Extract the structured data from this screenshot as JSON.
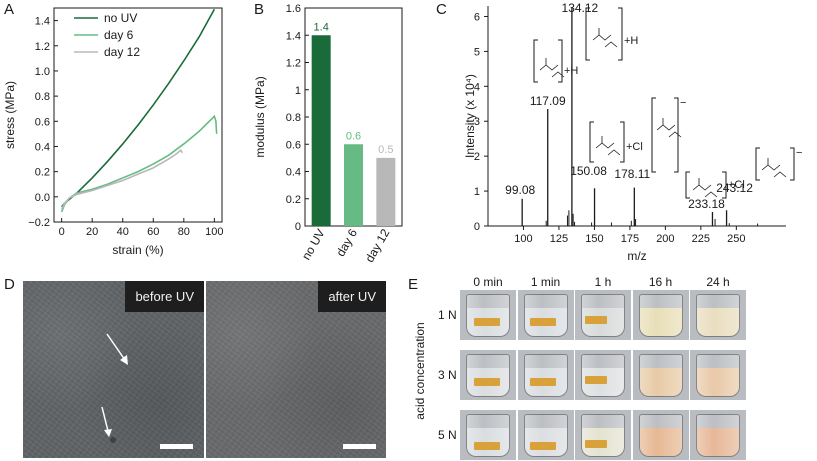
{
  "panel_labels": {
    "a": "A",
    "b": "B",
    "c": "C",
    "d": "D",
    "e": "E"
  },
  "colors": {
    "noUV": "#1a6b3a",
    "day6": "#66bb84",
    "day12": "#b8b8b8",
    "axis": "#1a1a1a"
  },
  "chart_data": [
    {
      "panel": "A",
      "type": "line",
      "xlabel": "strain (%)",
      "ylabel": "stress (MPa)",
      "xlim": [
        -5,
        105
      ],
      "ylim": [
        -0.2,
        1.5
      ],
      "xticks": [
        "0",
        "20",
        "40",
        "60",
        "80",
        "100"
      ],
      "yticks": [
        "−0.2",
        "0.0",
        "0.2",
        "0.4",
        "0.6",
        "0.8",
        "1.0",
        "1.2",
        "1.4"
      ],
      "legend": [
        "no UV",
        "day 6",
        "day 12"
      ],
      "series": [
        {
          "name": "no UV",
          "x": [
            0,
            2,
            5,
            10,
            20,
            30,
            40,
            50,
            60,
            70,
            80,
            90,
            100
          ],
          "y": [
            -0.08,
            -0.05,
            -0.02,
            0.03,
            0.15,
            0.28,
            0.42,
            0.57,
            0.73,
            0.9,
            1.08,
            1.27,
            1.49
          ]
        },
        {
          "name": "day 6",
          "x": [
            0,
            2,
            5,
            10,
            20,
            30,
            40,
            50,
            60,
            70,
            80,
            90,
            100,
            101,
            101.5
          ],
          "y": [
            -0.12,
            -0.06,
            -0.01,
            0.03,
            0.06,
            0.1,
            0.15,
            0.2,
            0.26,
            0.33,
            0.42,
            0.52,
            0.64,
            0.6,
            0.5
          ]
        },
        {
          "name": "day 12",
          "x": [
            0,
            2,
            5,
            10,
            20,
            30,
            40,
            50,
            60,
            70,
            75,
            78,
            79
          ],
          "y": [
            -0.1,
            -0.05,
            -0.01,
            0.02,
            0.05,
            0.09,
            0.13,
            0.18,
            0.23,
            0.3,
            0.34,
            0.37,
            0.35
          ]
        }
      ]
    },
    {
      "panel": "B",
      "type": "bar",
      "ylabel": "modulus (MPa)",
      "ylim": [
        0,
        1.6
      ],
      "yticks": [
        "0",
        "0.2",
        "0.4",
        "0.6",
        "0.8",
        "1",
        "1.2",
        "1.4",
        "1.6"
      ],
      "categories": [
        "no UV",
        "day 6",
        "day 12"
      ],
      "values": [
        1.4,
        0.6,
        0.5
      ],
      "value_labels": [
        "1.4",
        "0.6",
        "0.5"
      ]
    },
    {
      "panel": "C",
      "type": "bar",
      "xlabel": "m/z",
      "ylabel": "Intensity (x 10⁴)",
      "xlim": [
        75,
        285
      ],
      "ylim": [
        0,
        6.3
      ],
      "xticks": [
        "100",
        "125",
        "150",
        "175",
        "200",
        "225",
        "250"
      ],
      "yticks": [
        "0",
        "1",
        "2",
        "3",
        "4",
        "5",
        "6"
      ],
      "peaks": [
        {
          "mz": 99.08,
          "intensity": 0.78,
          "label": "99.08"
        },
        {
          "mz": 117.09,
          "intensity": 3.35,
          "label": "117.09"
        },
        {
          "mz": 134.12,
          "intensity": 6.25,
          "label": "134.12"
        },
        {
          "mz": 150.08,
          "intensity": 1.08,
          "label": "150.08"
        },
        {
          "mz": 178.11,
          "intensity": 1.1,
          "label": "178.11"
        },
        {
          "mz": 233.18,
          "intensity": 0.4,
          "label": "233.18"
        },
        {
          "mz": 243.12,
          "intensity": 0.45,
          "label": "243.12"
        }
      ],
      "minor_peaks": [
        {
          "mz": 116,
          "intensity": 0.15
        },
        {
          "mz": 131,
          "intensity": 0.3
        },
        {
          "mz": 132,
          "intensity": 0.45
        },
        {
          "mz": 135,
          "intensity": 0.35
        },
        {
          "mz": 136,
          "intensity": 0.12
        },
        {
          "mz": 148,
          "intensity": 0.1
        },
        {
          "mz": 162,
          "intensity": 0.1
        },
        {
          "mz": 176,
          "intensity": 0.15
        },
        {
          "mz": 179,
          "intensity": 0.2
        },
        {
          "mz": 235,
          "intensity": 0.2
        },
        {
          "mz": 245,
          "intensity": 0.08
        },
        {
          "mz": 265,
          "intensity": 0.07
        }
      ],
      "adduct_labels": [
        "+H",
        "+H",
        "+Cl",
        "+Cl"
      ],
      "charge_labels": [
        "−",
        "−"
      ]
    }
  ],
  "panel_d": {
    "before_label": "before UV",
    "after_label": "after UV"
  },
  "panel_e": {
    "row_axis_label": "acid concentration",
    "columns": [
      "0 min",
      "1 min",
      "1 h",
      "16 h",
      "24 h"
    ],
    "rows": [
      "1 N",
      "3 N",
      "5 N"
    ],
    "liquid_colors": [
      [
        "#d8dcdf",
        "#d8dcdf",
        "#d5d9d8",
        "#e7ddb4",
        "#e8dcbc"
      ],
      [
        "#d9dcdf",
        "#d8dcdf",
        "#dcdfe0",
        "#e6c8a2",
        "#e8c7a4"
      ],
      [
        "#d8dcdf",
        "#dadcdf",
        "#e3e2cf",
        "#e6b58e",
        "#e6b492"
      ]
    ]
  }
}
